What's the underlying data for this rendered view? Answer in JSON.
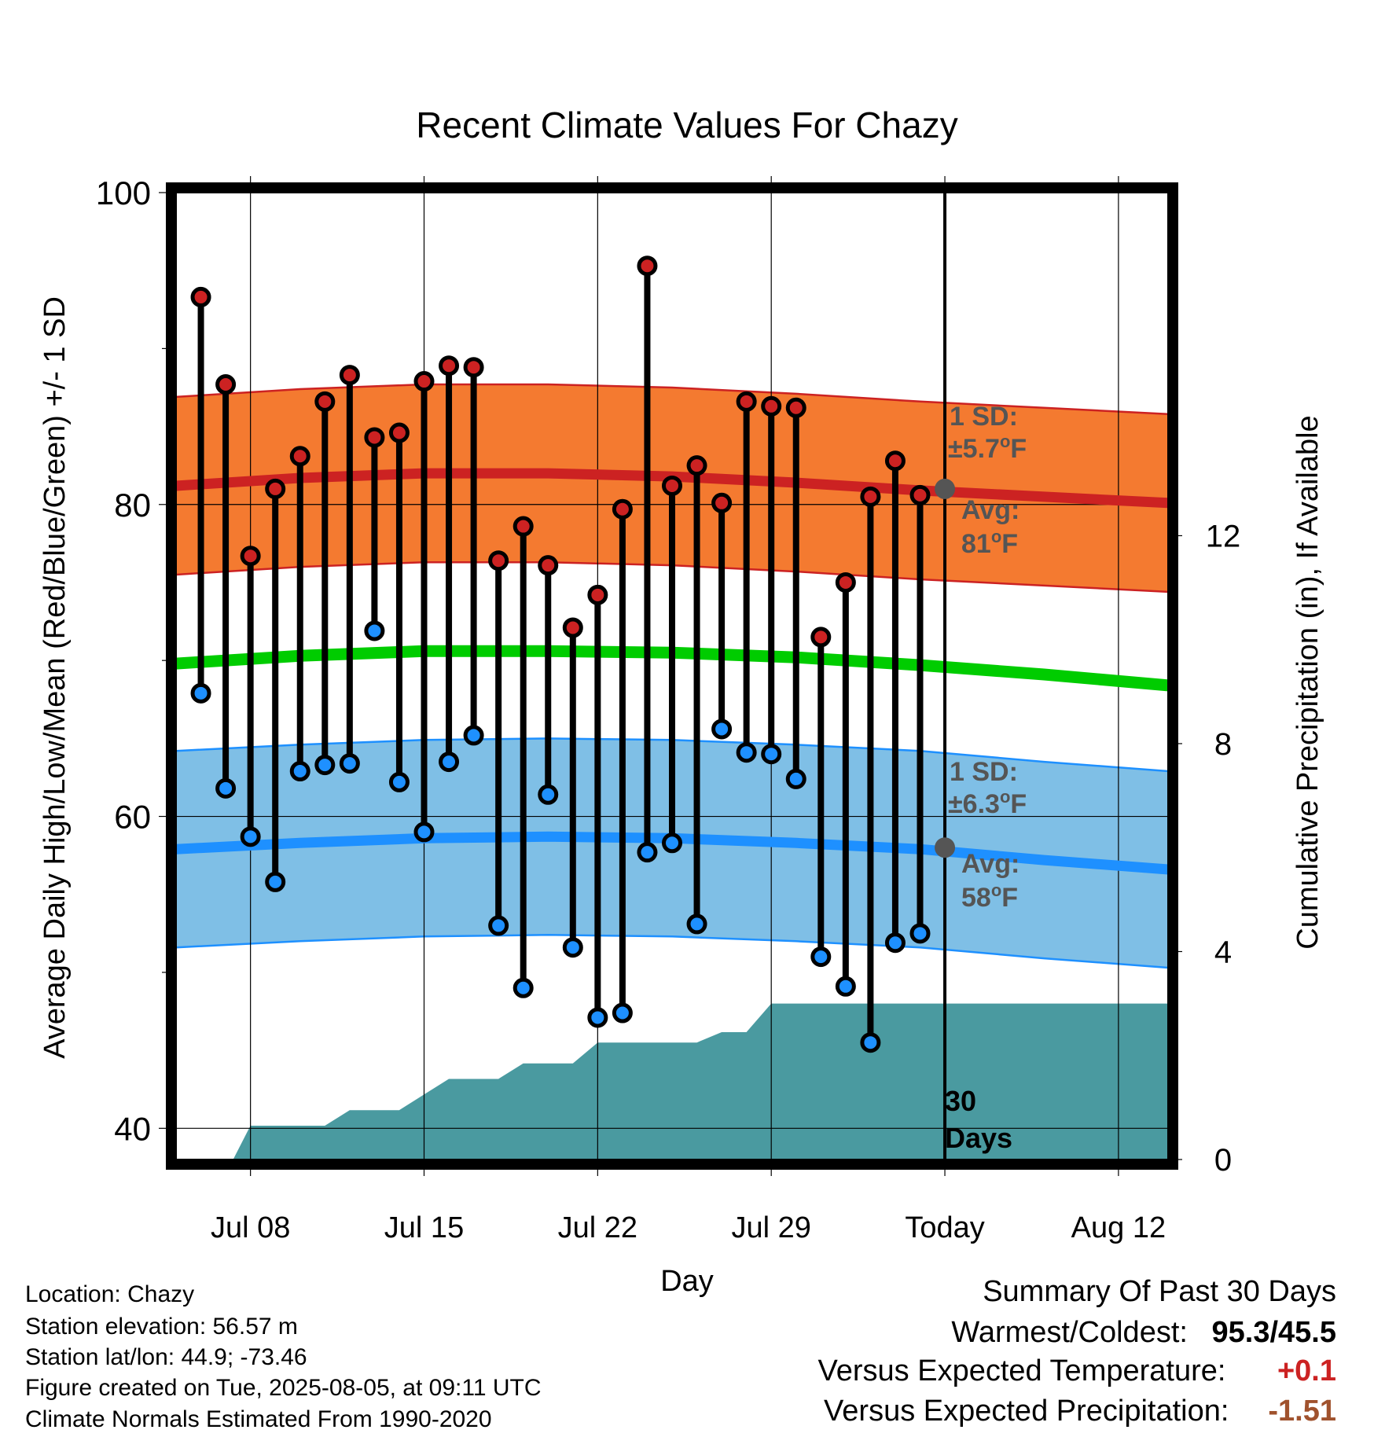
{
  "chart_data": {
    "type": "line",
    "title": "Recent Climate Values For Chazy",
    "xlabel": "Day",
    "ylabel": "Average Daily High/Low/Mean (Red/Blue/Green) +/- 1 SD",
    "y2label": "Cumulative Precipitation (in), If Available",
    "ylim": [
      38,
      100
    ],
    "y2lim": [
      0,
      18.6
    ],
    "yticks": [
      "40",
      "60",
      "80",
      "100"
    ],
    "y2ticks": [
      "0",
      "4",
      "8",
      "12"
    ],
    "xticks": [
      "Jul 08",
      "Jul 15",
      "Jul 22",
      "Jul 29",
      "Today",
      "Aug 12"
    ],
    "x_range_days": [
      "2025-07-05",
      "2025-08-14"
    ],
    "grid": true,
    "series": [
      {
        "name": "High",
        "color": "#cc2222",
        "dates": [
          "2025-07-06",
          "2025-07-07",
          "2025-07-08",
          "2025-07-09",
          "2025-07-10",
          "2025-07-11",
          "2025-07-12",
          "2025-07-13",
          "2025-07-14",
          "2025-07-15",
          "2025-07-16",
          "2025-07-17",
          "2025-07-18",
          "2025-07-19",
          "2025-07-20",
          "2025-07-21",
          "2025-07-22",
          "2025-07-23",
          "2025-07-24",
          "2025-07-25",
          "2025-07-26",
          "2025-07-27",
          "2025-07-28",
          "2025-07-29",
          "2025-07-30",
          "2025-07-31",
          "2025-08-01",
          "2025-08-02",
          "2025-08-03",
          "2025-08-04"
        ],
        "values": [
          93.3,
          87.7,
          76.7,
          81.0,
          83.1,
          86.6,
          88.3,
          84.3,
          84.6,
          87.9,
          88.9,
          88.8,
          76.4,
          78.6,
          76.1,
          72.1,
          74.2,
          79.7,
          95.3,
          81.2,
          82.5,
          80.1,
          86.6,
          86.3,
          86.2,
          71.5,
          75.0,
          80.5,
          82.8,
          80.6
        ]
      },
      {
        "name": "Low",
        "color": "#1e90ff",
        "dates": [
          "2025-07-06",
          "2025-07-07",
          "2025-07-08",
          "2025-07-09",
          "2025-07-10",
          "2025-07-11",
          "2025-07-12",
          "2025-07-13",
          "2025-07-14",
          "2025-07-15",
          "2025-07-16",
          "2025-07-17",
          "2025-07-18",
          "2025-07-19",
          "2025-07-20",
          "2025-07-21",
          "2025-07-22",
          "2025-07-23",
          "2025-07-24",
          "2025-07-25",
          "2025-07-26",
          "2025-07-27",
          "2025-07-28",
          "2025-07-29",
          "2025-07-30",
          "2025-07-31",
          "2025-08-01",
          "2025-08-02",
          "2025-08-03",
          "2025-08-04"
        ],
        "values": [
          67.9,
          61.8,
          58.7,
          55.8,
          62.9,
          63.3,
          63.4,
          71.9,
          62.2,
          59.0,
          63.5,
          65.2,
          53.0,
          49.0,
          61.4,
          51.6,
          47.1,
          47.4,
          57.7,
          58.3,
          53.1,
          65.6,
          64.1,
          64.0,
          62.4,
          51.0,
          49.1,
          45.5,
          51.9,
          52.5
        ]
      }
    ],
    "normals": {
      "high_avg": [
        [
          0,
          81.2
        ],
        [
          5,
          81.7
        ],
        [
          10,
          82.0
        ],
        [
          15,
          82.0
        ],
        [
          20,
          81.8
        ],
        [
          25,
          81.4
        ],
        [
          30,
          80.9
        ],
        [
          35,
          80.5
        ],
        [
          40,
          80.1
        ]
      ],
      "high_sd": 5.7,
      "low_avg": [
        [
          0,
          57.9
        ],
        [
          5,
          58.3
        ],
        [
          10,
          58.6
        ],
        [
          15,
          58.7
        ],
        [
          20,
          58.6
        ],
        [
          25,
          58.3
        ],
        [
          30,
          57.9
        ],
        [
          35,
          57.2
        ],
        [
          40,
          56.6
        ]
      ],
      "low_sd": 6.3,
      "mean_avg": [
        [
          0,
          69.8
        ],
        [
          5,
          70.3
        ],
        [
          10,
          70.6
        ],
        [
          15,
          70.6
        ],
        [
          20,
          70.5
        ],
        [
          25,
          70.2
        ],
        [
          30,
          69.7
        ],
        [
          35,
          69.1
        ],
        [
          40,
          68.4
        ]
      ]
    },
    "precip_cumulative": [
      [
        1.5,
        0
      ],
      [
        2.3,
        0
      ],
      [
        3,
        0.65
      ],
      [
        5,
        0.65
      ],
      [
        6,
        0.65
      ],
      [
        7,
        0.95
      ],
      [
        8,
        0.95
      ],
      [
        9,
        0.95
      ],
      [
        10,
        1.25
      ],
      [
        11,
        1.55
      ],
      [
        12,
        1.55
      ],
      [
        13,
        1.55
      ],
      [
        14,
        1.85
      ],
      [
        15,
        1.85
      ],
      [
        16,
        1.85
      ],
      [
        17,
        2.25
      ],
      [
        18,
        2.25
      ],
      [
        19,
        2.25
      ],
      [
        20,
        2.25
      ],
      [
        21,
        2.25
      ],
      [
        22,
        2.45
      ],
      [
        23,
        2.45
      ],
      [
        24,
        3.0
      ],
      [
        25,
        3.0
      ],
      [
        40,
        3.0
      ]
    ],
    "annotations": {
      "high_sd_label": "1 SD:",
      "high_sd_value": "±5.7",
      "high_avg_label": "Avg:",
      "high_avg_value": "81",
      "low_sd_label": "1 SD:",
      "low_sd_value": "±6.3",
      "low_avg_label": "Avg:",
      "low_avg_value": "58",
      "degree_symbol": "o",
      "unit": "F",
      "period_line1": "30",
      "period_line2": "Days"
    },
    "colors": {
      "high_band": "#f47a30",
      "high_line": "#cc2222",
      "low_band": "#7fbfe6",
      "low_line": "#1e90ff",
      "mean_line": "#00cc00",
      "precip_fill": "#4a9aa0",
      "annotation_text": "#555555"
    }
  },
  "info": {
    "location": "Location: Chazy",
    "elevation": "Station elevation: 56.57 m",
    "latlon": "Station lat/lon: 44.9; -73.46",
    "created": "Figure created on Tue, 2025-08-05, at 09:11 UTC",
    "normals": "Climate Normals Estimated From 1990-2020"
  },
  "summary": {
    "title": "Summary Of Past 30 Days",
    "warm_cold_label": "Warmest/Coldest:",
    "warm_cold_value": "95.3/45.5",
    "temp_label": "Versus Expected Temperature:",
    "temp_value": "+0.1",
    "temp_color": "#cc2222",
    "precip_label": "Versus Expected Precipitation:",
    "precip_value": "-1.51",
    "precip_color": "#a0522d"
  }
}
